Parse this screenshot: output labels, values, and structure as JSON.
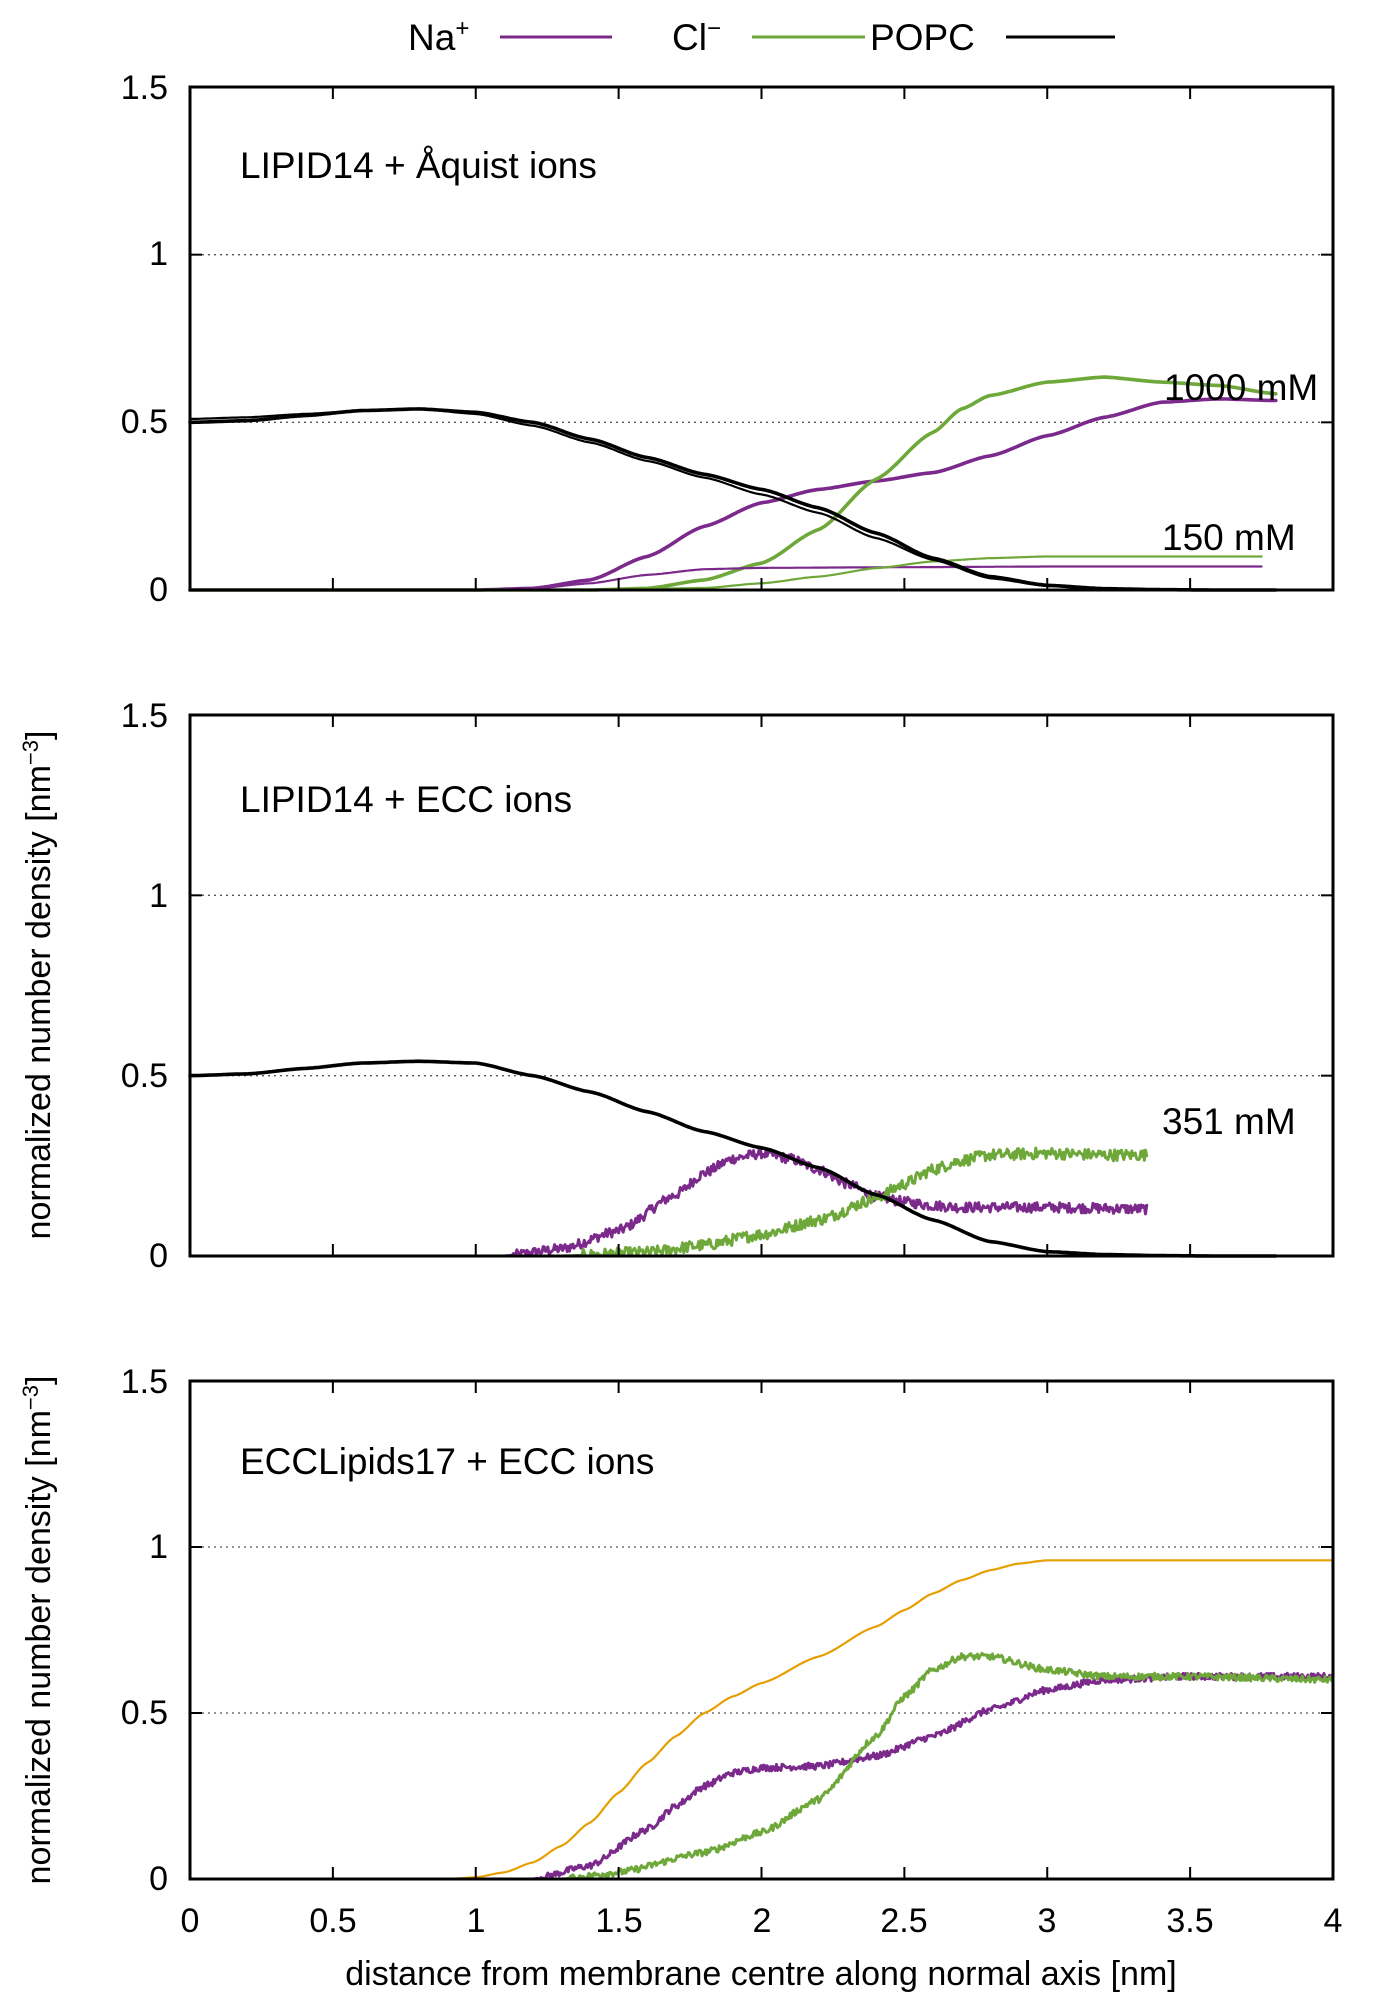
{
  "legend": {
    "items": [
      {
        "name": "Na⁺",
        "base": "Na",
        "sup": "+",
        "color": "#7b2a8c"
      },
      {
        "name": "Cl⁻",
        "base": "Cl",
        "sup": "−",
        "color": "#6fa83a"
      },
      {
        "name": "POPC",
        "base": "POPC",
        "sup": "",
        "color": "#000000"
      }
    ]
  },
  "x_axis": {
    "label": "distance from membrane centre along normal axis [nm]",
    "ticks": [
      "0",
      "0.5",
      "1",
      "1.5",
      "2",
      "2.5",
      "3",
      "3.5",
      "4"
    ]
  },
  "y_axis": {
    "label_base": "normalized number density [nm",
    "label_sup": "−3",
    "label_end": "]",
    "ticks": [
      "0",
      "0.5",
      "1",
      "1.5"
    ]
  },
  "panels": [
    {
      "label": "LIPID14 + Åquist ions",
      "conc_labels": [
        "1000 mM",
        "150 mM"
      ],
      "show_ylabel": false
    },
    {
      "label": "LIPID14 + ECC ions",
      "conc_labels": [
        "351 mM"
      ],
      "show_ylabel": true
    },
    {
      "label": "ECCLipids17 + ECC ions",
      "conc_labels": [],
      "show_ylabel": true
    }
  ],
  "chart_data": [
    {
      "type": "line",
      "title": "LIPID14 + Åquist ions",
      "xlabel": "",
      "ylabel": "",
      "xlim": [
        0,
        4
      ],
      "ylim": [
        0,
        1.5
      ],
      "grid": "horizontal dotted at 0.5 and 1",
      "series": [
        {
          "name": "Na⁺",
          "concentration": "1000 mM",
          "color": "#7b2a8c",
          "noise": 0,
          "x": [
            1.0,
            1.2,
            1.4,
            1.6,
            1.8,
            2.0,
            2.2,
            2.4,
            2.6,
            2.8,
            3.0,
            3.2,
            3.4,
            3.6,
            3.8
          ],
          "y": [
            0.0,
            0.005,
            0.03,
            0.1,
            0.19,
            0.26,
            0.3,
            0.325,
            0.35,
            0.4,
            0.46,
            0.515,
            0.56,
            0.57,
            0.565
          ]
        },
        {
          "name": "Cl⁻",
          "concentration": "1000 mM",
          "color": "#6fa83a",
          "noise": 0,
          "x": [
            1.4,
            1.6,
            1.8,
            2.0,
            2.2,
            2.4,
            2.6,
            2.7,
            2.8,
            3.0,
            3.2,
            3.4,
            3.6,
            3.8
          ],
          "y": [
            0.0,
            0.005,
            0.03,
            0.08,
            0.18,
            0.33,
            0.47,
            0.54,
            0.58,
            0.62,
            0.635,
            0.62,
            0.61,
            0.585
          ]
        },
        {
          "name": "Na⁺",
          "concentration": "150 mM",
          "color": "#7b2a8c",
          "noise": 0,
          "x": [
            1.0,
            1.2,
            1.4,
            1.6,
            1.8,
            2.0,
            2.5,
            3.0,
            3.5,
            3.75
          ],
          "y": [
            0.0,
            0.004,
            0.02,
            0.045,
            0.062,
            0.066,
            0.068,
            0.07,
            0.07,
            0.07
          ]
        },
        {
          "name": "Cl⁻",
          "concentration": "150 mM",
          "color": "#6fa83a",
          "noise": 0,
          "x": [
            1.4,
            1.8,
            2.0,
            2.2,
            2.4,
            2.6,
            2.8,
            3.0,
            3.4,
            3.75
          ],
          "y": [
            0.0,
            0.006,
            0.02,
            0.04,
            0.065,
            0.085,
            0.095,
            0.1,
            0.1,
            0.1
          ]
        },
        {
          "name": "POPC",
          "concentration": "1000 mM",
          "color": "#000000",
          "noise": 0,
          "x": [
            0.0,
            0.2,
            0.4,
            0.6,
            0.8,
            1.0,
            1.2,
            1.4,
            1.6,
            1.8,
            2.0,
            2.2,
            2.4,
            2.6,
            2.8,
            3.0,
            3.2,
            3.4,
            3.6,
            3.8
          ],
          "y": [
            0.5,
            0.505,
            0.52,
            0.535,
            0.54,
            0.53,
            0.5,
            0.45,
            0.395,
            0.345,
            0.3,
            0.245,
            0.17,
            0.095,
            0.04,
            0.014,
            0.004,
            0.001,
            0.0,
            0.0
          ]
        },
        {
          "name": "POPC",
          "concentration": "150 mM",
          "color": "#000000",
          "noise": 0,
          "x": [
            0.0,
            0.2,
            0.4,
            0.6,
            0.8,
            1.0,
            1.2,
            1.4,
            1.6,
            1.8,
            2.0,
            2.2,
            2.4,
            2.6,
            2.8,
            3.0,
            3.2,
            3.4,
            3.6,
            3.8
          ],
          "y": [
            0.51,
            0.515,
            0.525,
            0.535,
            0.54,
            0.525,
            0.49,
            0.44,
            0.385,
            0.335,
            0.285,
            0.23,
            0.155,
            0.09,
            0.035,
            0.012,
            0.003,
            0.001,
            0.0,
            0.0
          ]
        }
      ]
    },
    {
      "type": "line",
      "title": "LIPID14 + ECC ions",
      "xlabel": "",
      "ylabel": "normalized number density [nm⁻³]",
      "xlim": [
        0,
        4
      ],
      "ylim": [
        0,
        1.5
      ],
      "grid": "horizontal dotted at 0.5 and 1",
      "series": [
        {
          "name": "Na⁺",
          "concentration": "351 mM",
          "color": "#7b2a8c",
          "noise": 0.014,
          "x": [
            1.1,
            1.3,
            1.5,
            1.7,
            1.8,
            1.9,
            2.0,
            2.1,
            2.2,
            2.3,
            2.4,
            2.5,
            2.6,
            2.7,
            3.0,
            3.35
          ],
          "y": [
            0.0,
            0.02,
            0.07,
            0.17,
            0.23,
            0.27,
            0.285,
            0.27,
            0.24,
            0.2,
            0.165,
            0.15,
            0.14,
            0.135,
            0.135,
            0.13
          ]
        },
        {
          "name": "Cl⁻",
          "concentration": "351 mM",
          "color": "#6fa83a",
          "noise": 0.016,
          "x": [
            1.3,
            1.6,
            1.8,
            2.0,
            2.2,
            2.4,
            2.5,
            2.6,
            2.7,
            2.8,
            3.0,
            3.2,
            3.35
          ],
          "y": [
            0.0,
            0.01,
            0.03,
            0.06,
            0.1,
            0.16,
            0.2,
            0.24,
            0.265,
            0.28,
            0.285,
            0.28,
            0.28
          ]
        },
        {
          "name": "POPC",
          "concentration": "351 mM",
          "color": "#000000",
          "noise": 0,
          "x": [
            0.0,
            0.2,
            0.4,
            0.6,
            0.8,
            1.0,
            1.2,
            1.4,
            1.6,
            1.8,
            2.0,
            2.2,
            2.4,
            2.6,
            2.8,
            3.0,
            3.2,
            3.4,
            3.6,
            3.8
          ],
          "y": [
            0.5,
            0.505,
            0.52,
            0.535,
            0.54,
            0.535,
            0.5,
            0.455,
            0.4,
            0.345,
            0.3,
            0.245,
            0.17,
            0.1,
            0.04,
            0.012,
            0.004,
            0.001,
            0.0,
            0.0
          ]
        }
      ]
    },
    {
      "type": "line",
      "title": "ECCLipids17 + ECC ions",
      "xlabel": "distance from membrane centre along normal axis [nm]",
      "ylabel": "normalized number density [nm⁻³]",
      "xlim": [
        0,
        4
      ],
      "ylim": [
        0,
        1.5
      ],
      "grid": "horizontal dotted at 0.5 and 1",
      "series": [
        {
          "name": "Na⁺",
          "color": "#7b2a8c",
          "noise": 0.01,
          "x": [
            1.2,
            1.4,
            1.6,
            1.7,
            1.8,
            1.9,
            2.0,
            2.2,
            2.4,
            2.6,
            2.8,
            3.0,
            3.2,
            3.5,
            4.0
          ],
          "y": [
            0.0,
            0.04,
            0.15,
            0.22,
            0.28,
            0.32,
            0.335,
            0.34,
            0.37,
            0.43,
            0.51,
            0.57,
            0.6,
            0.61,
            0.61
          ]
        },
        {
          "name": "Cl⁻",
          "color": "#6fa83a",
          "noise": 0.01,
          "x": [
            1.3,
            1.5,
            1.8,
            2.0,
            2.2,
            2.4,
            2.5,
            2.6,
            2.7,
            2.8,
            3.0,
            3.2,
            3.5,
            4.0
          ],
          "y": [
            0.0,
            0.02,
            0.08,
            0.14,
            0.24,
            0.43,
            0.55,
            0.63,
            0.67,
            0.67,
            0.63,
            0.61,
            0.61,
            0.6
          ]
        },
        {
          "name": "",
          "color": "#e69f00",
          "noise": 0,
          "x": [
            0.9,
            1.0,
            1.1,
            1.2,
            1.3,
            1.4,
            1.5,
            1.6,
            1.7,
            1.8,
            1.9,
            2.0,
            2.2,
            2.4,
            2.5,
            2.6,
            2.7,
            2.8,
            2.9,
            3.0,
            3.5,
            4.0
          ],
          "y": [
            0.0,
            0.005,
            0.02,
            0.05,
            0.1,
            0.17,
            0.26,
            0.35,
            0.43,
            0.5,
            0.55,
            0.59,
            0.67,
            0.76,
            0.81,
            0.86,
            0.9,
            0.93,
            0.95,
            0.96,
            0.96,
            0.96
          ]
        }
      ]
    }
  ]
}
